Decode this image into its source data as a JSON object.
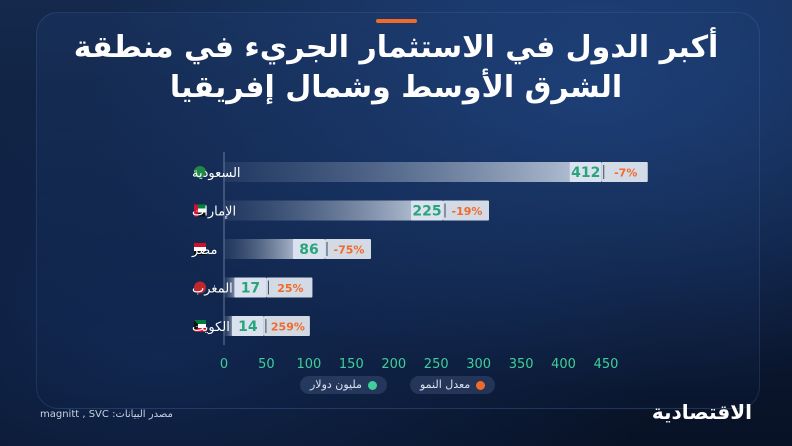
{
  "header": {
    "title_line1": "أكبر الدول في الاستثمار الجريء في منطقة",
    "title_line2": "الشرق الأوسط وشمال إفريقيا"
  },
  "legend": {
    "value_label": "مليون دولار",
    "growth_label": "معدل النمو",
    "value_color": "#3ecf9a",
    "growth_color": "#f26a2a"
  },
  "source": "مصدر البيانات: magnitt , SVC",
  "logo": "الاقتصادية",
  "chart_data": {
    "type": "bar",
    "orientation": "horizontal",
    "categories": [
      "السعودية",
      "الإمارات",
      "مصر",
      "المغرب",
      "الكويت"
    ],
    "flags": [
      "saudi-flag",
      "uae-flag",
      "egypt-flag",
      "morocco-flag",
      "kuwait-flag"
    ],
    "series": [
      {
        "name": "مليون دولار",
        "values": [
          412,
          225,
          86,
          17,
          14
        ]
      }
    ],
    "growth_labels": [
      "-7%",
      "-19%",
      "-75%",
      "25%",
      "259%"
    ],
    "xlim": [
      0,
      450
    ],
    "xticks": [
      0,
      50,
      100,
      150,
      200,
      250,
      300,
      350,
      400,
      450
    ],
    "xlabel": "",
    "ylabel": "",
    "grid": false,
    "colors": {
      "value": "#3ecf9a",
      "growth": "#f26a2a",
      "tick": "#3ecf9a"
    }
  }
}
